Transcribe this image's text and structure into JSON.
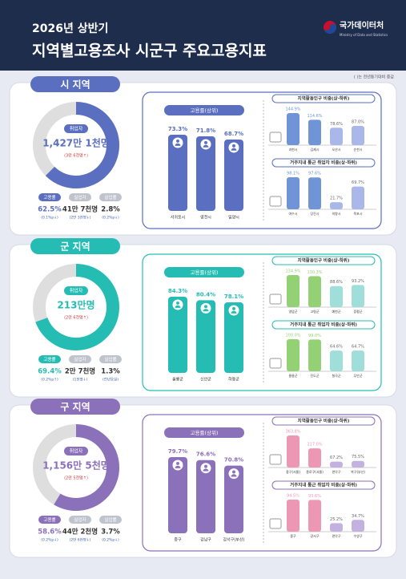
{
  "header": {
    "subtitle": "2026년 상반기",
    "title": "지역별고용조사 시군구 주요고용지표",
    "logo": "국가데이터처",
    "logo_en": "Ministry of Data and Statistics"
  },
  "note": "( )는 전년동기대비 증감",
  "sections": [
    {
      "title": "시 지역",
      "color": "#5a6fc0",
      "light_color": "#a9b8e8",
      "accent_color": "#6f95d6",
      "donut": {
        "label": "취업자",
        "value_text": "1,427만 1천명",
        "change": "(3만 6천명↑)"
      },
      "stats": [
        {
          "label": "고용률",
          "value": 62.5,
          "value_label": "62.5%",
          "change": "(0.1%p↓)"
        },
        {
          "label": "실업자",
          "text": "41만 7천명",
          "change": "(2만 3천명↓)"
        },
        {
          "label": "실업률",
          "text": "2.8%",
          "change": "(0.2%p↓)"
        }
      ],
      "main_chart": {
        "title": "고용률(상위)",
        "categories": [
          "서귀포시",
          "영천시",
          "밀양시"
        ],
        "values": [
          73.3,
          71.8,
          68.7
        ],
        "value_labels": [
          "73.3%",
          "71.8%",
          "68.7%"
        ]
      },
      "side_charts": [
        {
          "title": "지역활동인구 비중(상·하위)",
          "categories": [
            "과천시",
            "김제시",
            "오산시",
            "순천시"
          ],
          "values": [
            144.9,
            114.6,
            78.6,
            87.0
          ],
          "value_labels": [
            "144.9%",
            "114.6%",
            "78.6%",
            "87.0%"
          ]
        },
        {
          "title": "거주지내 통근 취업자 비중(상·하위)",
          "categories": [
            "여수시",
            "당진시",
            "의왕시",
            "목포시"
          ],
          "values": [
            98.1,
            97.6,
            21.7,
            69.7
          ],
          "value_labels": [
            "98.1%",
            "97.6%",
            "21.7%",
            "69.7%"
          ]
        }
      ]
    },
    {
      "title": "군 지역",
      "color": "#25bdb3",
      "light_color": "#9fded9",
      "accent_color": "#93d174",
      "donut": {
        "label": "취업자",
        "value_text": "213만명",
        "change": "(2만 6천명↑)"
      },
      "stats": [
        {
          "label": "고용률",
          "value": 69.4,
          "value_label": "69.4%",
          "change": "(0.2%p↑)"
        },
        {
          "label": "실업자",
          "text": "2만 7천명",
          "change": "(1천명↓)"
        },
        {
          "label": "실업률",
          "text": "1.3%",
          "change": "(전년동일)"
        }
      ],
      "main_chart": {
        "title": "고용률(상위)",
        "categories": [
          "울릉군",
          "신안군",
          "하동군"
        ],
        "values": [
          84.3,
          80.4,
          78.1
        ],
        "value_labels": [
          "84.3%",
          "80.4%",
          "78.1%"
        ]
      },
      "side_charts": [
        {
          "title": "지역활동인구 비중(상·하위)",
          "categories": [
            "영암군",
            "고령군",
            "예천군",
            "증평군"
          ],
          "values": [
            134.9,
            130.3,
            88.6,
            93.2
          ],
          "value_labels": [
            "134.9%",
            "130.3%",
            "88.6%",
            "93.2%"
          ]
        },
        {
          "title": "거주지내 통근 취업자 비중(상·하위)",
          "categories": [
            "울릉군",
            "진도군",
            "칠곡군",
            "무안군"
          ],
          "values": [
            100.0,
            99.0,
            64.6,
            64.7
          ],
          "value_labels": [
            "100.0%",
            "99.0%",
            "64.6%",
            "64.7%"
          ]
        }
      ]
    },
    {
      "title": "구 지역",
      "color": "#8b70ba",
      "light_color": "#c3b1e0",
      "accent_color": "#ec97b4",
      "donut": {
        "label": "취업자",
        "value_text": "1,156만 5천명",
        "change": "(2만 5천명↑)"
      },
      "stats": [
        {
          "label": "고용률",
          "value": 58.6,
          "value_label": "58.6%",
          "change": "(0.2%p↓)"
        },
        {
          "label": "실업자",
          "text": "44만 2천명",
          "change": "(2만 6천명↓)"
        },
        {
          "label": "실업률",
          "text": "3.7%",
          "change": "(0.2%p↓)"
        }
      ],
      "main_chart": {
        "title": "고용률(상위)",
        "categories": [
          "중구",
          "강남구",
          "강서구(부산)"
        ],
        "values": [
          79.7,
          76.6,
          70.8
        ],
        "value_labels": [
          "79.7%",
          "76.6%",
          "70.8%"
        ]
      },
      "side_charts": [
        {
          "title": "지역활동인구 비중(상·하위)",
          "categories": [
            "중구(서울)",
            "종로구(서울)",
            "관악구",
            "북구(부산)"
          ],
          "values": [
            363.8,
            217.0,
            67.2,
            75.5
          ],
          "value_labels": [
            "363.8%",
            "217.0%",
            "67.2%",
            "75.5%"
          ]
        },
        {
          "title": "거주지내 통근 취업자 비중(상·하위)",
          "categories": [
            "중구",
            "강서구",
            "관악구",
            "수영구"
          ],
          "values": [
            94.5,
            93.6,
            25.2,
            34.7
          ],
          "value_labels": [
            "94.5%",
            "93.6%",
            "25.2%",
            "34.7%"
          ]
        }
      ]
    }
  ]
}
